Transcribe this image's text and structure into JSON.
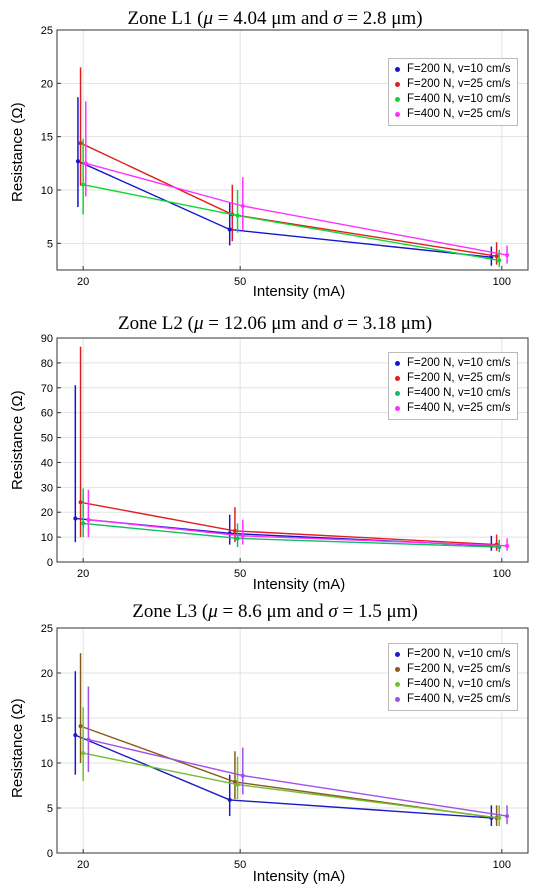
{
  "chart_data": [
    {
      "type": "line",
      "title_prefix": "Zone L1 (",
      "mu_label": "μ",
      "mu_value": " = 4.04 μm",
      "and_label": " and ",
      "sigma_label": "σ",
      "sigma_value": " = 2.8 μm",
      "title_suffix": ")",
      "xlabel": "Intensity (mA)",
      "ylabel": "Resistance (Ω)",
      "x": [
        20,
        50,
        100
      ],
      "xlim": [
        15,
        105
      ],
      "ylim": [
        2.5,
        25
      ],
      "yticks": [
        5,
        10,
        15,
        20,
        25
      ],
      "grid": true,
      "legend_position": "top-right",
      "series": [
        {
          "name": "F=200 N, v=10 cm/s",
          "color": "#1515d0",
          "x": [
            19,
            48,
            98
          ],
          "values": [
            12.7,
            6.3,
            3.7
          ],
          "err_low": [
            4.3,
            1.5,
            0.8
          ],
          "err_high": [
            6.0,
            2.5,
            1.0
          ]
        },
        {
          "name": "F=200 N, v=25 cm/s",
          "color": "#e02020",
          "x": [
            19.5,
            48.5,
            99
          ],
          "values": [
            14.4,
            7.7,
            3.8
          ],
          "err_low": [
            4.0,
            2.5,
            0.8
          ],
          "err_high": [
            7.1,
            2.8,
            1.3
          ]
        },
        {
          "name": "F=400 N, v=10 cm/s",
          "color": "#10d830",
          "x": [
            20,
            49.5,
            99.5
          ],
          "values": [
            10.5,
            7.6,
            3.4
          ],
          "err_low": [
            2.8,
            1.6,
            0.6
          ],
          "err_high": [
            4.3,
            2.4,
            1.0
          ]
        },
        {
          "name": "F=400 N, v=25 cm/s",
          "color": "#ff30ff",
          "x": [
            20.5,
            50.5,
            101
          ],
          "values": [
            12.5,
            8.5,
            3.9
          ],
          "err_low": [
            3.1,
            2.3,
            0.8
          ],
          "err_high": [
            5.8,
            2.7,
            0.9
          ]
        }
      ]
    },
    {
      "type": "line",
      "title_prefix": "Zone L2 (",
      "mu_label": "μ",
      "mu_value": " = 12.06 μm",
      "and_label": " and ",
      "sigma_label": "σ",
      "sigma_value": " = 3.18 μm",
      "title_suffix": ")",
      "xlabel": "Intensity (mA)",
      "ylabel": "Resistance (Ω)",
      "x": [
        20,
        50,
        100
      ],
      "xlim": [
        15,
        105
      ],
      "ylim": [
        0,
        90
      ],
      "yticks": [
        0,
        10,
        20,
        30,
        40,
        50,
        60,
        70,
        80,
        90
      ],
      "grid": true,
      "legend_position": "top-right",
      "series": [
        {
          "name": "F=200 N, v=10 cm/s",
          "color": "#1515d0",
          "x": [
            18.5,
            48,
            98
          ],
          "values": [
            17.5,
            11.5,
            6.5
          ],
          "err_low": [
            9.5,
            4.5,
            2.0
          ],
          "err_high": [
            53.5,
            7.5,
            4.0
          ]
        },
        {
          "name": "F=200 N, v=25 cm/s",
          "color": "#e02020",
          "x": [
            19.5,
            49,
            99
          ],
          "values": [
            24.0,
            12.5,
            7.0
          ],
          "err_low": [
            14.0,
            4.5,
            2.5
          ],
          "err_high": [
            62.5,
            9.5,
            4.0
          ]
        },
        {
          "name": "F=400 N, v=10 cm/s",
          "color": "#10c060",
          "x": [
            20,
            49.5,
            99.5
          ],
          "values": [
            15.5,
            9.5,
            6.0
          ],
          "err_low": [
            5.5,
            3.5,
            2.0
          ],
          "err_high": [
            14.0,
            6.0,
            3.0
          ]
        },
        {
          "name": "F=400 N, v=25 cm/s",
          "color": "#ff30ff",
          "x": [
            21,
            50.5,
            101
          ],
          "values": [
            17.0,
            10.5,
            6.5
          ],
          "err_low": [
            7.0,
            3.5,
            2.0
          ],
          "err_high": [
            12.0,
            6.5,
            3.0
          ]
        }
      ]
    },
    {
      "type": "line",
      "title_prefix": "Zone L3 (",
      "mu_label": "μ",
      "mu_value": " = 8.6 μm",
      "and_label": " and ",
      "sigma_label": "σ",
      "sigma_value": " = 1.5 μm",
      "title_suffix": ")",
      "xlabel": "Intensity (mA)",
      "ylabel": "Resistance (Ω)",
      "x": [
        20,
        50,
        100
      ],
      "xlim": [
        15,
        105
      ],
      "ylim": [
        0,
        25
      ],
      "yticks": [
        0,
        5,
        10,
        15,
        20,
        25
      ],
      "grid": true,
      "legend_position": "top-right",
      "series": [
        {
          "name": "F=200 N, v=10 cm/s",
          "color": "#1a1ac8",
          "x": [
            18.5,
            48,
            98
          ],
          "values": [
            13.1,
            5.9,
            3.9
          ],
          "err_low": [
            4.4,
            1.8,
            0.9
          ],
          "err_high": [
            7.1,
            2.8,
            1.4
          ]
        },
        {
          "name": "F=200 N, v=25 cm/s",
          "color": "#8a5a1a",
          "x": [
            19.5,
            49,
            99
          ],
          "values": [
            14.1,
            7.9,
            3.9
          ],
          "err_low": [
            4.1,
            1.9,
            0.9
          ],
          "err_high": [
            8.1,
            3.4,
            1.4
          ]
        },
        {
          "name": "F=400 N, v=10 cm/s",
          "color": "#70c030",
          "x": [
            20,
            49.5,
            99.5
          ],
          "values": [
            11.1,
            7.6,
            3.9
          ],
          "err_low": [
            3.1,
            1.6,
            0.9
          ],
          "err_high": [
            5.1,
            3.1,
            1.4
          ]
        },
        {
          "name": "F=400 N, v=25 cm/s",
          "color": "#a050e8",
          "x": [
            21,
            50.5,
            101
          ],
          "values": [
            12.6,
            8.6,
            4.1
          ],
          "err_low": [
            3.6,
            2.1,
            0.9
          ],
          "err_high": [
            5.9,
            3.1,
            1.2
          ]
        }
      ]
    }
  ]
}
